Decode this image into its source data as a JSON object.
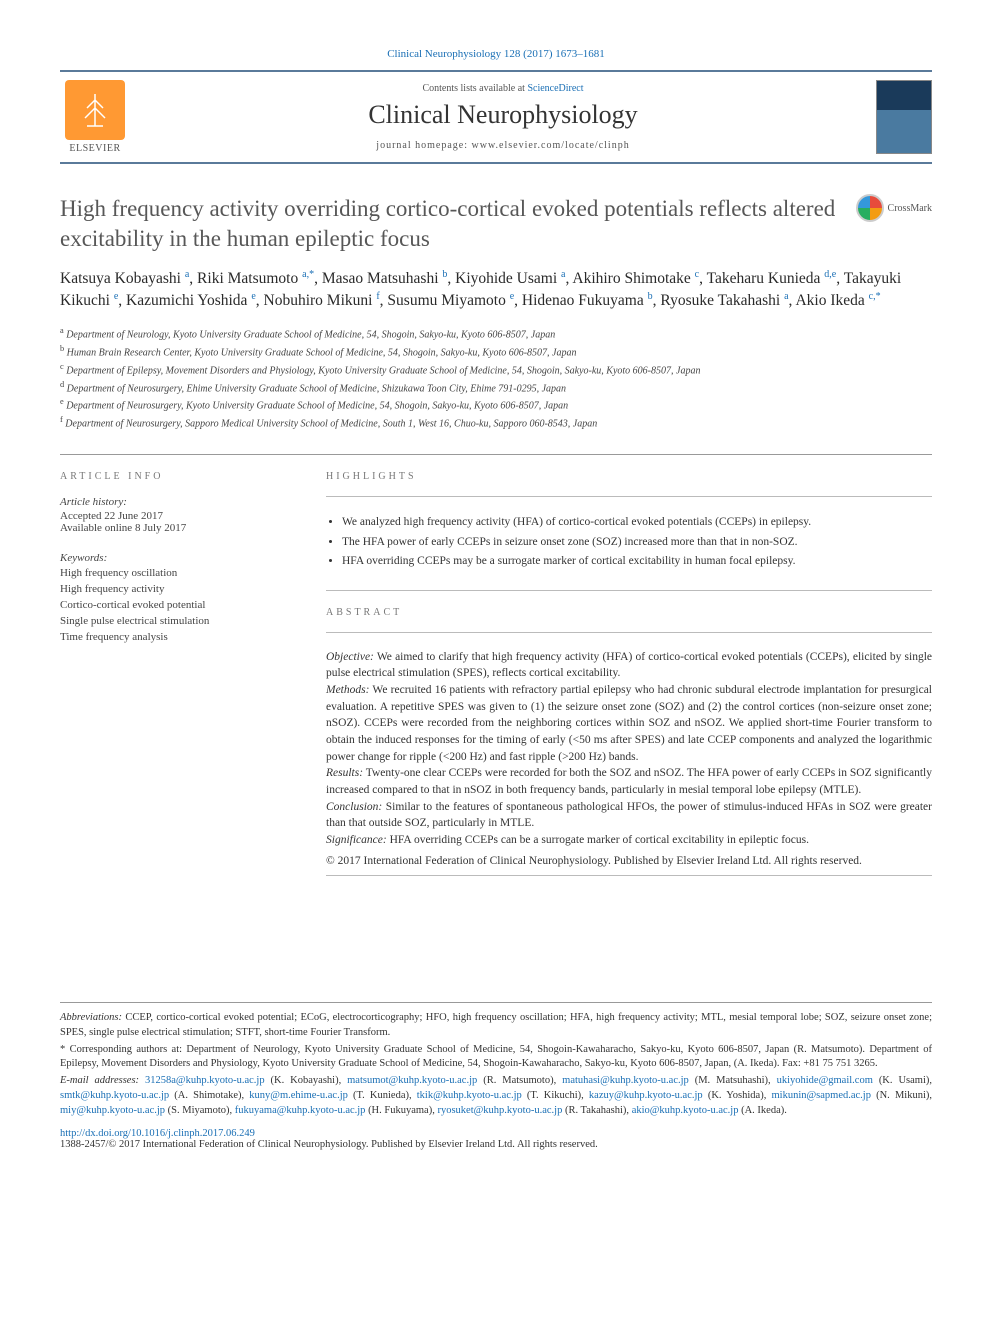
{
  "citation": "Clinical Neurophysiology 128 (2017) 1673–1681",
  "header": {
    "contents_prefix": "Contents lists available at ",
    "contents_link": "ScienceDirect",
    "journal_name": "Clinical Neurophysiology",
    "homepage_prefix": "journal homepage: ",
    "homepage_url": "www.elsevier.com/locate/clinph",
    "publisher_name": "ELSEVIER"
  },
  "crossmark_label": "CrossMark",
  "title": "High frequency activity overriding cortico-cortical evoked potentials reflects altered excitability in the human epileptic focus",
  "authors_html": "Katsuya Kobayashi <sup>a</sup>, Riki Matsumoto <sup>a,*</sup>, Masao Matsuhashi <sup>b</sup>, Kiyohide Usami <sup>a</sup>, Akihiro Shimotake <sup>c</sup>, Takeharu Kunieda <sup>d,e</sup>, Takayuki Kikuchi <sup>e</sup>, Kazumichi Yoshida <sup>e</sup>, Nobuhiro Mikuni <sup>f</sup>, Susumu Miyamoto <sup>e</sup>, Hidenao Fukuyama <sup>b</sup>, Ryosuke Takahashi <sup>a</sup>, Akio Ikeda <sup>c,*</sup>",
  "affiliations": [
    {
      "s": "a",
      "t": "Department of Neurology, Kyoto University Graduate School of Medicine, 54, Shogoin, Sakyo-ku, Kyoto 606-8507, Japan"
    },
    {
      "s": "b",
      "t": "Human Brain Research Center, Kyoto University Graduate School of Medicine, 54, Shogoin, Sakyo-ku, Kyoto 606-8507, Japan"
    },
    {
      "s": "c",
      "t": "Department of Epilepsy, Movement Disorders and Physiology, Kyoto University Graduate School of Medicine, 54, Shogoin, Sakyo-ku, Kyoto 606-8507, Japan"
    },
    {
      "s": "d",
      "t": "Department of Neurosurgery, Ehime University Graduate School of Medicine, Shizukawa Toon City, Ehime 791-0295, Japan"
    },
    {
      "s": "e",
      "t": "Department of Neurosurgery, Kyoto University Graduate School of Medicine, 54, Shogoin, Sakyo-ku, Kyoto 606-8507, Japan"
    },
    {
      "s": "f",
      "t": "Department of Neurosurgery, Sapporo Medical University School of Medicine, South 1, West 16, Chuo-ku, Sapporo 060-8543, Japan"
    }
  ],
  "article_info": {
    "heading": "article info",
    "history_head": "Article history:",
    "accepted": "Accepted 22 June 2017",
    "online": "Available online 8 July 2017",
    "keywords_head": "Keywords:",
    "keywords": [
      "High frequency oscillation",
      "High frequency activity",
      "Cortico-cortical evoked potential",
      "Single pulse electrical stimulation",
      "Time frequency analysis"
    ]
  },
  "highlights": {
    "heading": "highlights",
    "items": [
      "We analyzed high frequency activity (HFA) of cortico-cortical evoked potentials (CCEPs) in epilepsy.",
      "The HFA power of early CCEPs in seizure onset zone (SOZ) increased more than that in non-SOZ.",
      "HFA overriding CCEPs may be a surrogate marker of cortical excitability in human focal epilepsy."
    ]
  },
  "abstract": {
    "heading": "abstract",
    "objective_lbl": "Objective:",
    "objective": " We aimed to clarify that high frequency activity (HFA) of cortico-cortical evoked potentials (CCEPs), elicited by single pulse electrical stimulation (SPES), reflects cortical excitability.",
    "methods_lbl": "Methods:",
    "methods": " We recruited 16 patients with refractory partial epilepsy who had chronic subdural electrode implantation for presurgical evaluation. A repetitive SPES was given to (1) the seizure onset zone (SOZ) and (2) the control cortices (non-seizure onset zone; nSOZ). CCEPs were recorded from the neighboring cortices within SOZ and nSOZ. We applied short-time Fourier transform to obtain the induced responses for the timing of early (<50 ms after SPES) and late CCEP components and analyzed the logarithmic power change for ripple (<200 Hz) and fast ripple (>200 Hz) bands.",
    "results_lbl": "Results:",
    "results": " Twenty-one clear CCEPs were recorded for both the SOZ and nSOZ. The HFA power of early CCEPs in SOZ significantly increased compared to that in nSOZ in both frequency bands, particularly in mesial temporal lobe epilepsy (MTLE).",
    "conclusion_lbl": "Conclusion:",
    "conclusion": " Similar to the features of spontaneous pathological HFOs, the power of stimulus-induced HFAs in SOZ were greater than that outside SOZ, particularly in MTLE.",
    "significance_lbl": "Significance:",
    "significance": " HFA overriding CCEPs can be a surrogate marker of cortical excitability in epileptic focus.",
    "copyright": "© 2017 International Federation of Clinical Neurophysiology. Published by Elsevier Ireland Ltd. All rights reserved."
  },
  "footnotes": {
    "abbr_lbl": "Abbreviations:",
    "abbr": " CCEP, cortico-cortical evoked potential; ECoG, electrocorticography; HFO, high frequency oscillation; HFA, high frequency activity; MTL, mesial temporal lobe; SOZ, seizure onset zone; SPES, single pulse electrical stimulation; STFT, short-time Fourier Transform.",
    "corr_lbl": "* Corresponding authors at:",
    "corr": " Department of Neurology, Kyoto University Graduate School of Medicine, 54, Shogoin-Kawaharacho, Sakyo-ku, Kyoto 606-8507, Japan (R. Matsumoto). Department of Epilepsy, Movement Disorders and Physiology, Kyoto University Graduate School of Medicine, 54, Shogoin-Kawaharacho, Sakyo-ku, Kyoto 606-8507, Japan, (A. Ikeda). Fax: +81 75 751 3265.",
    "email_lbl": "E-mail addresses:",
    "emails": [
      {
        "e": "31258a@kuhp.kyoto-u.ac.jp",
        "n": " (K. Kobayashi), "
      },
      {
        "e": "matsumot@kuhp.kyoto-u.ac.jp",
        "n": " (R. Matsumoto), "
      },
      {
        "e": "matuhasi@kuhp.kyoto-u.ac.jp",
        "n": " (M. Matsuhashi), "
      },
      {
        "e": "ukiyohide@gmail.com",
        "n": " (K. Usami), "
      },
      {
        "e": "smtk@kuhp.kyoto-u.ac.jp",
        "n": " (A. Shimotake), "
      },
      {
        "e": "kuny@m.ehime-u.ac.jp",
        "n": " (T. Kunieda), "
      },
      {
        "e": "tkik@kuhp.kyoto-u.ac.jp",
        "n": " (T. Kikuchi), "
      },
      {
        "e": "kazuy@kuhp.kyoto-u.ac.jp",
        "n": " (K. Yoshida), "
      },
      {
        "e": "mikunin@sapmed.ac.jp",
        "n": " (N. Mikuni), "
      },
      {
        "e": "miy@kuhp.kyoto-u.ac.jp",
        "n": " (S. Miyamoto), "
      },
      {
        "e": "fukuyama@kuhp.kyoto-u.ac.jp",
        "n": " (H. Fukuyama), "
      },
      {
        "e": "ryosuket@kuhp.kyoto-u.ac.jp",
        "n": " (R. Takahashi), "
      },
      {
        "e": "akio@kuhp.kyoto-u.ac.jp",
        "n": " (A. Ikeda)."
      }
    ]
  },
  "doi": {
    "url": "http://dx.doi.org/10.1016/j.clinph.2017.06.249",
    "issn_line": "1388-2457/© 2017 International Federation of Clinical Neurophysiology. Published by Elsevier Ireland Ltd. All rights reserved."
  }
}
